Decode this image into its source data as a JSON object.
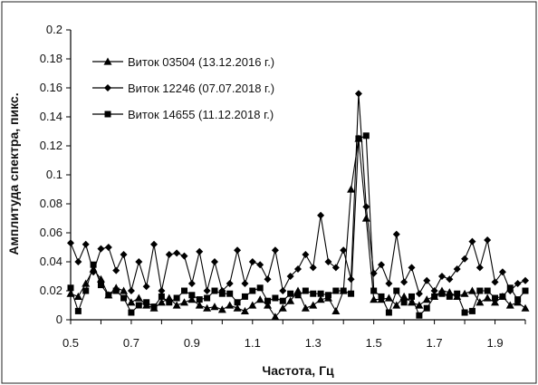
{
  "chart_data": {
    "type": "line",
    "xlabel": "Частота, Гц",
    "ylabel": "Амплитуда спектра, пикс.",
    "xlim": [
      0.5,
      2.0
    ],
    "ylim": [
      0,
      0.2
    ],
    "x_ticks": [
      "0.5",
      "0.7",
      "0.9",
      "1.1",
      "1.3",
      "1.5",
      "1.7",
      "1.9"
    ],
    "y_ticks": [
      "0",
      "0.02",
      "0.04",
      "0.06",
      "0.08",
      "0.1",
      "0.12",
      "0.14",
      "0.16",
      "0.18",
      "0.2"
    ],
    "grid": false,
    "legend_position": "top-left",
    "series": [
      {
        "name": "Виток 03504 (13.12.2016 г.)",
        "marker": "triangle",
        "x": [
          0.5,
          0.525,
          0.55,
          0.575,
          0.6,
          0.625,
          0.65,
          0.675,
          0.7,
          0.725,
          0.75,
          0.775,
          0.8,
          0.825,
          0.85,
          0.875,
          0.9,
          0.925,
          0.95,
          0.975,
          1.0,
          1.025,
          1.05,
          1.075,
          1.1,
          1.125,
          1.15,
          1.175,
          1.2,
          1.225,
          1.25,
          1.275,
          1.3,
          1.325,
          1.35,
          1.375,
          1.4,
          1.425,
          1.45,
          1.475,
          1.5,
          1.525,
          1.55,
          1.575,
          1.6,
          1.625,
          1.65,
          1.675,
          1.7,
          1.725,
          1.75,
          1.775,
          1.8,
          1.825,
          1.85,
          1.875,
          1.9,
          1.925,
          1.95,
          1.975,
          2.0
        ],
        "values": [
          0.018,
          0.016,
          0.025,
          0.035,
          0.028,
          0.017,
          0.022,
          0.02,
          0.012,
          0.015,
          0.01,
          0.008,
          0.012,
          0.015,
          0.01,
          0.012,
          0.014,
          0.01,
          0.008,
          0.009,
          0.007,
          0.01,
          0.008,
          0.006,
          0.01,
          0.014,
          0.01,
          0.002,
          0.008,
          0.013,
          0.02,
          0.008,
          0.01,
          0.014,
          0.015,
          0.006,
          0.02,
          0.09,
          0.125,
          0.07,
          0.014,
          0.014,
          0.015,
          0.01,
          0.016,
          0.012,
          0.01,
          0.014,
          0.016,
          0.02,
          0.019,
          0.016,
          0.018,
          0.02,
          0.012,
          0.015,
          0.012,
          0.016,
          0.01,
          0.012,
          0.008
        ]
      },
      {
        "name": "Виток 12246 (07.07.2018 г.)",
        "marker": "diamond",
        "x": [
          0.5,
          0.525,
          0.55,
          0.575,
          0.6,
          0.625,
          0.65,
          0.675,
          0.7,
          0.725,
          0.75,
          0.775,
          0.8,
          0.825,
          0.85,
          0.875,
          0.9,
          0.925,
          0.95,
          0.975,
          1.0,
          1.025,
          1.05,
          1.075,
          1.1,
          1.125,
          1.15,
          1.175,
          1.2,
          1.225,
          1.25,
          1.275,
          1.3,
          1.325,
          1.35,
          1.375,
          1.4,
          1.425,
          1.45,
          1.475,
          1.5,
          1.525,
          1.55,
          1.575,
          1.6,
          1.625,
          1.65,
          1.675,
          1.7,
          1.725,
          1.75,
          1.775,
          1.8,
          1.825,
          1.85,
          1.875,
          1.9,
          1.925,
          1.95,
          1.975,
          2.0
        ],
        "values": [
          0.053,
          0.04,
          0.052,
          0.033,
          0.049,
          0.05,
          0.034,
          0.045,
          0.02,
          0.04,
          0.023,
          0.052,
          0.02,
          0.045,
          0.046,
          0.044,
          0.025,
          0.047,
          0.02,
          0.04,
          0.02,
          0.025,
          0.048,
          0.025,
          0.04,
          0.038,
          0.028,
          0.048,
          0.02,
          0.03,
          0.035,
          0.045,
          0.036,
          0.072,
          0.04,
          0.036,
          0.048,
          0.028,
          0.156,
          0.078,
          0.032,
          0.038,
          0.025,
          0.059,
          0.026,
          0.036,
          0.018,
          0.027,
          0.02,
          0.03,
          0.028,
          0.035,
          0.042,
          0.054,
          0.036,
          0.055,
          0.026,
          0.033,
          0.02,
          0.025,
          0.027
        ]
      },
      {
        "name": "Виток 14655 (11.12.2018 г.)",
        "marker": "square",
        "x": [
          0.5,
          0.525,
          0.55,
          0.575,
          0.6,
          0.625,
          0.65,
          0.675,
          0.7,
          0.725,
          0.75,
          0.775,
          0.8,
          0.825,
          0.85,
          0.875,
          0.9,
          0.925,
          0.95,
          0.975,
          1.0,
          1.025,
          1.05,
          1.075,
          1.1,
          1.125,
          1.15,
          1.175,
          1.2,
          1.225,
          1.25,
          1.275,
          1.3,
          1.325,
          1.35,
          1.375,
          1.4,
          1.425,
          1.45,
          1.475,
          1.5,
          1.525,
          1.55,
          1.575,
          1.6,
          1.625,
          1.65,
          1.675,
          1.7,
          1.725,
          1.75,
          1.775,
          1.8,
          1.825,
          1.85,
          1.875,
          1.9,
          1.925,
          1.95,
          1.975,
          2.0
        ],
        "values": [
          0.022,
          0.006,
          0.02,
          0.038,
          0.024,
          0.017,
          0.02,
          0.015,
          0.005,
          0.01,
          0.012,
          0.009,
          0.016,
          0.012,
          0.015,
          0.02,
          0.017,
          0.014,
          0.015,
          0.02,
          0.018,
          0.018,
          0.012,
          0.016,
          0.02,
          0.022,
          0.013,
          0.015,
          0.013,
          0.018,
          0.017,
          0.02,
          0.018,
          0.018,
          0.017,
          0.02,
          0.02,
          0.018,
          0.125,
          0.127,
          0.02,
          0.016,
          0.005,
          0.02,
          0.012,
          0.016,
          0.003,
          0.008,
          0.016,
          0.018,
          0.016,
          0.018,
          0.005,
          0.006,
          0.02,
          0.02,
          0.015,
          0.016,
          0.022,
          0.014,
          0.02
        ]
      }
    ]
  }
}
